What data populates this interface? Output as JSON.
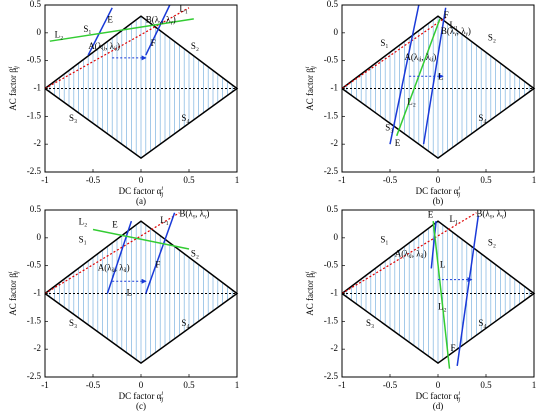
{
  "chart_data": [
    {
      "type": "line",
      "caption": "(a)",
      "xlabel": "DC factor α",
      "xlabel_sub": "ij",
      "xlabel_sup": "i",
      "ylabel": "AC factor β",
      "ylabel_sub": "ij",
      "ylabel_sup": "i",
      "xlim": [
        -1,
        1
      ],
      "ylim": [
        -2.5,
        0.5
      ],
      "xticks": [
        -1,
        -0.5,
        0,
        0.5,
        1
      ],
      "yticks": [
        0.5,
        0,
        -0.5,
        -1,
        -1.5,
        -2,
        -2.5
      ],
      "series": [
        {
          "color": "#000000",
          "width": 1.5,
          "x": [
            -1,
            0,
            1,
            0,
            -1
          ],
          "values": [
            -1,
            0.3,
            -1,
            -2.25,
            -1
          ]
        },
        {
          "color": "#000000",
          "width": 1,
          "dash": "2,2",
          "x": [
            -1,
            1
          ],
          "values": [
            -1,
            -1
          ]
        },
        {
          "color": "#e00000",
          "width": 1.2,
          "dash": "2,2",
          "x": [
            -1,
            0.5
          ],
          "values": [
            -1,
            0.45
          ]
        },
        {
          "color": "#1a3ad8",
          "width": 1.5,
          "x": [
            -0.55,
            -0.3
          ],
          "values": [
            -0.4,
            0.45
          ]
        },
        {
          "color": "#1a3ad8",
          "width": 1.5,
          "x": [
            0.05,
            0.3
          ],
          "values": [
            -0.4,
            0.5
          ]
        },
        {
          "color": "#33cc33",
          "width": 1.5,
          "x": [
            -0.95,
            0.55
          ],
          "values": [
            -0.15,
            0.25
          ]
        }
      ],
      "annotations": [
        "L₁",
        "L₂",
        "S₁",
        "E",
        "B(λᵧ, λᵧ)",
        "A(λᵢⱼ, λᵢⱼ)",
        "F",
        "S₂",
        "S₃",
        "S₄"
      ]
    },
    {
      "type": "line",
      "caption": "(b)",
      "xlabel": "DC factor α",
      "xlabel_sub": "ij",
      "xlabel_sup": "i",
      "ylabel": "AC factor β",
      "ylabel_sub": "ij",
      "ylabel_sup": "i",
      "xlim": [
        -1,
        1
      ],
      "ylim": [
        -2.5,
        0.5
      ],
      "xticks": [
        -1,
        -0.5,
        0,
        0.5,
        1
      ],
      "yticks": [
        0.5,
        0,
        -0.5,
        -1,
        -1.5,
        -2,
        -2.5
      ],
      "series": [
        {
          "color": "#000000",
          "width": 1.5,
          "x": [
            -1,
            0,
            1,
            0,
            -1
          ],
          "values": [
            -1,
            0.3,
            -1,
            -2.25,
            -1
          ]
        },
        {
          "color": "#000000",
          "width": 1,
          "dash": "2,2",
          "x": [
            -1,
            1
          ],
          "values": [
            -1,
            -1
          ]
        },
        {
          "color": "#e00000",
          "width": 1.2,
          "dash": "2,2",
          "x": [
            -1,
            0.1
          ],
          "values": [
            -1,
            0.3
          ]
        },
        {
          "color": "#1a3ad8",
          "width": 1.5,
          "x": [
            -0.5,
            -0.2
          ],
          "values": [
            -2,
            0.5
          ]
        },
        {
          "color": "#1a3ad8",
          "width": 1.5,
          "x": [
            -0.15,
            0.08
          ],
          "values": [
            -2,
            0.45
          ]
        },
        {
          "color": "#33cc33",
          "width": 1.5,
          "x": [
            -0.43,
            0.02
          ],
          "values": [
            -1.85,
            0.25
          ]
        }
      ],
      "annotations": [
        "F",
        "L₁",
        "B(λᵧ, λᵧ)",
        "S₁",
        "S₂",
        "A(λᵢⱼ, λᵢⱼ)",
        "L",
        "L₂",
        "S₃",
        "E",
        "S₄"
      ]
    },
    {
      "type": "line",
      "caption": "(c)",
      "xlabel": "DC factor α",
      "xlabel_sub": "ij",
      "xlabel_sup": "i",
      "ylabel": "AC factor β",
      "ylabel_sub": "ij",
      "ylabel_sup": "i",
      "xlim": [
        -1,
        1
      ],
      "ylim": [
        -2.5,
        0.5
      ],
      "xticks": [
        -1,
        -0.5,
        0,
        0.5,
        1
      ],
      "yticks": [
        0.5,
        0,
        -0.5,
        -1,
        -1.5,
        -2,
        -2.5
      ],
      "series": [
        {
          "color": "#000000",
          "width": 1.5,
          "x": [
            -1,
            0,
            1,
            0,
            -1
          ],
          "values": [
            -1,
            0.3,
            -1,
            -2.25,
            -1
          ]
        },
        {
          "color": "#000000",
          "width": 1,
          "dash": "2,2",
          "x": [
            -1,
            1
          ],
          "values": [
            -1,
            -1
          ]
        },
        {
          "color": "#e00000",
          "width": 1.2,
          "dash": "2,2",
          "x": [
            -1,
            0.4
          ],
          "values": [
            -1,
            0.45
          ]
        },
        {
          "color": "#1a3ad8",
          "width": 1.5,
          "x": [
            -0.35,
            -0.1
          ],
          "values": [
            -1,
            0.3
          ]
        },
        {
          "color": "#1a3ad8",
          "width": 1.5,
          "x": [
            0.05,
            0.35
          ],
          "values": [
            -1,
            0.45
          ]
        },
        {
          "color": "#33cc33",
          "width": 1.5,
          "x": [
            -0.5,
            0.5
          ],
          "values": [
            0.15,
            -0.2
          ]
        }
      ],
      "annotations": [
        "L₂",
        "E",
        "L₁",
        "B(λᵧ, λᵧ)",
        "S₁",
        "F",
        "S₂",
        "A(λᵢⱼ, λᵢⱼ)",
        "L",
        "S₃",
        "S₄"
      ]
    },
    {
      "type": "line",
      "caption": "(d)",
      "xlabel": "DC factor α",
      "xlabel_sub": "ij",
      "xlabel_sup": "i",
      "ylabel": "AC factor β",
      "ylabel_sub": "ij",
      "ylabel_sup": "i",
      "xlim": [
        -1,
        1
      ],
      "ylim": [
        -2.5,
        0.5
      ],
      "xticks": [
        -1,
        -0.5,
        0,
        0.5,
        1
      ],
      "yticks": [
        0.5,
        0,
        -0.5,
        -1,
        -1.5,
        -2,
        -2.5
      ],
      "series": [
        {
          "color": "#000000",
          "width": 1.5,
          "x": [
            -1,
            0,
            1,
            0,
            -1
          ],
          "values": [
            -1,
            0.3,
            -1,
            -2.25,
            -1
          ]
        },
        {
          "color": "#000000",
          "width": 1,
          "dash": "2,2",
          "x": [
            -1,
            1
          ],
          "values": [
            -1,
            -1
          ]
        },
        {
          "color": "#e00000",
          "width": 1.2,
          "dash": "2,2",
          "x": [
            -1,
            0.4
          ],
          "values": [
            -1,
            0.45
          ]
        },
        {
          "color": "#1a3ad8",
          "width": 1.5,
          "x": [
            -0.07,
            -0.02
          ],
          "values": [
            -0.55,
            0.3
          ]
        },
        {
          "color": "#1a3ad8",
          "width": 1.5,
          "x": [
            0.2,
            0.42
          ],
          "values": [
            -2.3,
            0.4
          ]
        },
        {
          "color": "#33cc33",
          "width": 1.5,
          "x": [
            -0.05,
            0.12
          ],
          "values": [
            0.3,
            -2.35
          ]
        }
      ],
      "annotations": [
        "E",
        "L₁",
        "B(λᵧ, λᵧ)",
        "S₁",
        "S₂",
        "A(λᵢⱼ, λᵢⱼ)",
        "L",
        "L₂",
        "S₃",
        "F",
        "S₄"
      ]
    }
  ]
}
